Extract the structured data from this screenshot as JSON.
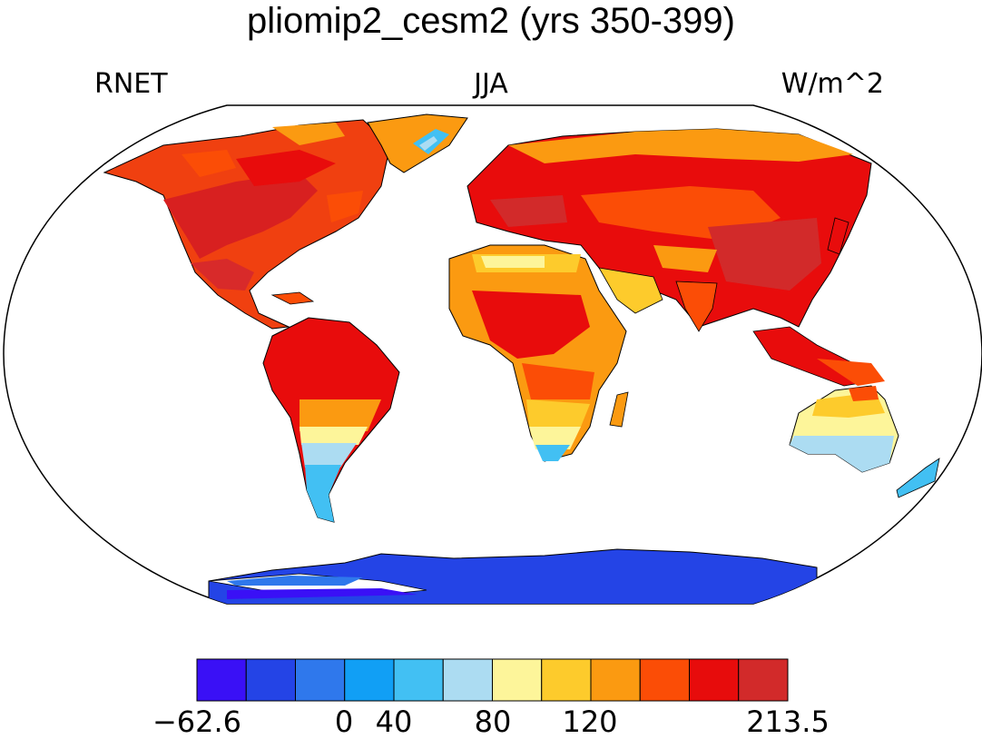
{
  "title": "pliomip2_cesm2 (yrs 350-399)",
  "subtitles": {
    "left": "RNET",
    "center": "JJA",
    "right": "W/m^2"
  },
  "colorbar": {
    "colors": [
      "#3a10f6",
      "#2444e6",
      "#2f78ec",
      "#119ff5",
      "#42c0f3",
      "#acdcf2",
      "#fdf59a",
      "#fdcb2c",
      "#fb9a11",
      "#fb4d06",
      "#e70c0c",
      "#d22a2a"
    ],
    "labels": [
      "−62.6",
      "0",
      "40",
      "80",
      "120",
      "213.5"
    ]
  },
  "map": {
    "projection": "Robinson",
    "ocean_color": "#ffffff",
    "coastline_color": "#000000"
  }
}
